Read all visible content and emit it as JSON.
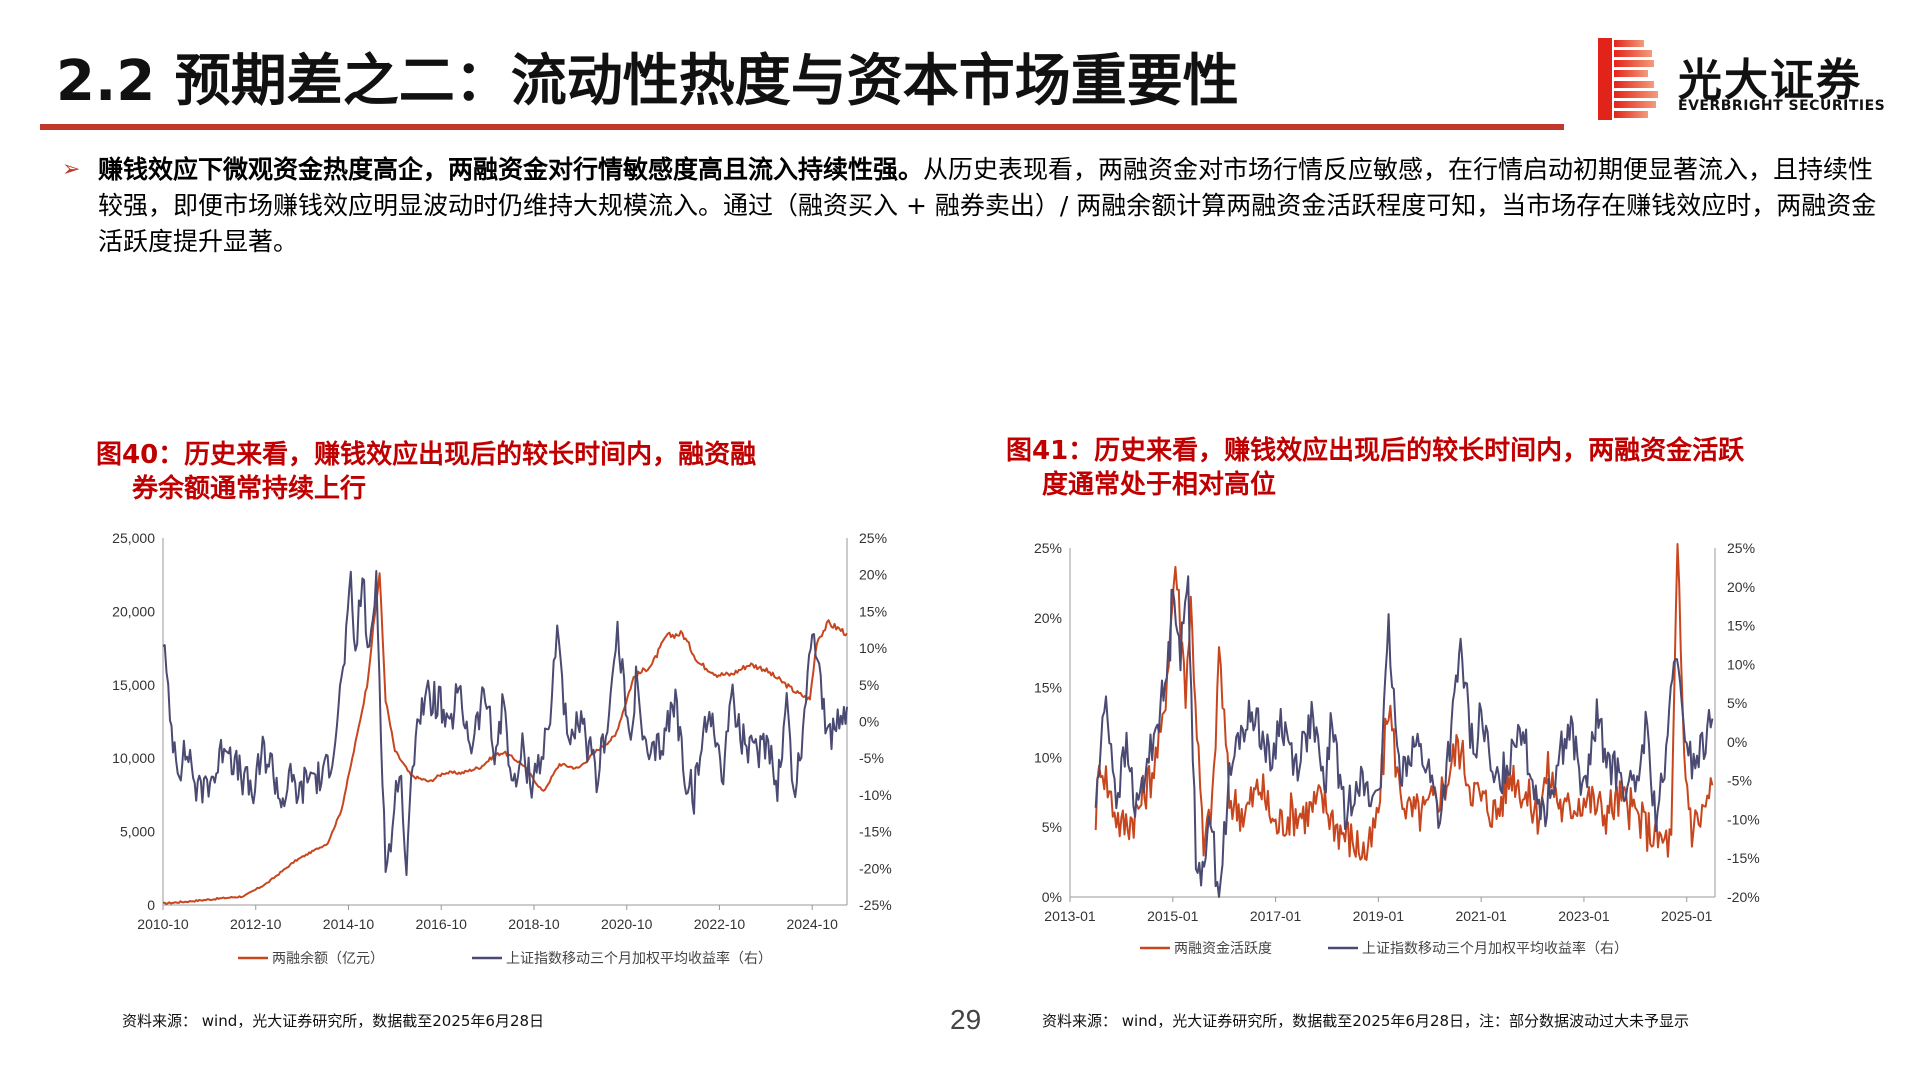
{
  "header": {
    "title": "2.2 预期差之二：流动性热度与资本市场重要性",
    "logo_cn": "光大证券",
    "logo_en": "EVERBRIGHT SECURITIES"
  },
  "bullet": {
    "bold": "赚钱效应下微观资金热度高企，两融资金对行情敏感度高且流入持续性强。",
    "normal": "从历史表现看，两融资金对市场行情反应敏感，在行情启动初期便显著流入，且持续性较强，即便市场赚钱效应明显波动时仍维持大规模流入。通过（融资买入 + 融券卖出）/ 两融余额计算两融资金活跃程度可知，当市场存在赚钱效应时，两融资金活跃度提升显著。"
  },
  "figures": [
    {
      "title_line1": "图40：历史来看，赚钱效应出现后的较长时间内，融资融",
      "title_line2": "券余额通常持续上行",
      "source": "资料来源： wind，光大证券研究所，数据截至2025年6月28日"
    },
    {
      "title_line1": "图41：历史来看，赚钱效应出现后的较长时间内，两融资金活跃",
      "title_line2": "度通常处于相对高位",
      "source": "资料来源： wind，光大证券研究所，数据截至2025年6月28日，注：部分数据波动过大未予显示"
    }
  ],
  "page_number": "29",
  "colors": {
    "accent": "#c0392b",
    "series_red": "#c8461e",
    "series_navy": "#4a4a72",
    "title_red": "#c00000"
  },
  "chart_data": [
    {
      "type": "line",
      "x_ticks": [
        "2010-10",
        "2012-10",
        "2014-10",
        "2016-10",
        "2018-10",
        "2020-10",
        "2022-10",
        "2024-10"
      ],
      "x_range": [
        2010.75,
        2025.5
      ],
      "y_left_ticks": [
        "25,000",
        "20,000",
        "15,000",
        "10,000",
        "5,000",
        "0"
      ],
      "y_left_range": [
        0,
        25000
      ],
      "y_right_ticks": [
        "25%",
        "20%",
        "15%",
        "10%",
        "5%",
        "0%",
        "-5%",
        "-10%",
        "-15%",
        "-20%",
        "-25%"
      ],
      "y_right_range": [
        -25,
        25
      ],
      "grid": false,
      "legend_position": "bottom",
      "series": [
        {
          "name": "两融余额（亿元）",
          "axis": "left",
          "points": [
            [
              2010.75,
              100
            ],
            [
              2011.5,
              300
            ],
            [
              2012.5,
              600
            ],
            [
              2013.0,
              1500
            ],
            [
              2013.6,
              3000
            ],
            [
              2014.0,
              3700
            ],
            [
              2014.3,
              4200
            ],
            [
              2014.6,
              6500
            ],
            [
              2014.9,
              11000
            ],
            [
              2015.15,
              15000
            ],
            [
              2015.42,
              22600
            ],
            [
              2015.55,
              14000
            ],
            [
              2015.75,
              10500
            ],
            [
              2016.1,
              8800
            ],
            [
              2016.5,
              8400
            ],
            [
              2016.8,
              9000
            ],
            [
              2017.2,
              9000
            ],
            [
              2017.6,
              9400
            ],
            [
              2017.9,
              10200
            ],
            [
              2018.1,
              10400
            ],
            [
              2018.5,
              9600
            ],
            [
              2018.95,
              7700
            ],
            [
              2019.3,
              9600
            ],
            [
              2019.7,
              9300
            ],
            [
              2020.1,
              10500
            ],
            [
              2020.5,
              11500
            ],
            [
              2020.9,
              15500
            ],
            [
              2021.3,
              16400
            ],
            [
              2021.6,
              18300
            ],
            [
              2021.95,
              18500
            ],
            [
              2022.3,
              16500
            ],
            [
              2022.7,
              15700
            ],
            [
              2023.0,
              15700
            ],
            [
              2023.4,
              16400
            ],
            [
              2023.7,
              16100
            ],
            [
              2024.1,
              15200
            ],
            [
              2024.4,
              14500
            ],
            [
              2024.7,
              14000
            ],
            [
              2024.85,
              18000
            ],
            [
              2025.1,
              19200
            ],
            [
              2025.5,
              18500
            ]
          ]
        },
        {
          "name": "上证指数移动三个月加权平均收益率（右）",
          "axis": "right",
          "points": [
            [
              2010.75,
              12
            ],
            [
              2010.9,
              0
            ],
            [
              2011.1,
              -6
            ],
            [
              2011.3,
              -4
            ],
            [
              2011.5,
              -10
            ],
            [
              2011.7,
              -8
            ],
            [
              2011.9,
              -7
            ],
            [
              2012.1,
              -2
            ],
            [
              2012.3,
              -6
            ],
            [
              2012.5,
              -8
            ],
            [
              2012.7,
              -10
            ],
            [
              2012.9,
              -4
            ],
            [
              2013.1,
              -6
            ],
            [
              2013.3,
              -11
            ],
            [
              2013.5,
              -8
            ],
            [
              2013.7,
              -10
            ],
            [
              2013.9,
              -7
            ],
            [
              2014.2,
              -8
            ],
            [
              2014.4,
              -4
            ],
            [
              2014.6,
              5
            ],
            [
              2014.8,
              18
            ],
            [
              2014.9,
              9
            ],
            [
              2015.05,
              20
            ],
            [
              2015.2,
              8
            ],
            [
              2015.35,
              20
            ],
            [
              2015.55,
              -20
            ],
            [
              2015.7,
              -15
            ],
            [
              2015.85,
              -5
            ],
            [
              2016.0,
              -20
            ],
            [
              2016.2,
              0
            ],
            [
              2016.4,
              3
            ],
            [
              2016.7,
              3
            ],
            [
              2016.9,
              -2
            ],
            [
              2017.1,
              4
            ],
            [
              2017.4,
              -3
            ],
            [
              2017.7,
              4
            ],
            [
              2017.9,
              -5
            ],
            [
              2018.1,
              3
            ],
            [
              2018.3,
              -10
            ],
            [
              2018.5,
              -4
            ],
            [
              2018.7,
              -8
            ],
            [
              2018.95,
              -4
            ],
            [
              2019.1,
              0
            ],
            [
              2019.25,
              14
            ],
            [
              2019.5,
              -5
            ],
            [
              2019.7,
              0
            ],
            [
              2019.9,
              -3
            ],
            [
              2020.1,
              -8
            ],
            [
              2020.4,
              3
            ],
            [
              2020.55,
              12
            ],
            [
              2020.8,
              -2
            ],
            [
              2020.95,
              5
            ],
            [
              2021.2,
              -6
            ],
            [
              2021.5,
              -3
            ],
            [
              2021.8,
              3
            ],
            [
              2022.0,
              -7
            ],
            [
              2022.2,
              -10
            ],
            [
              2022.4,
              -2
            ],
            [
              2022.6,
              2
            ],
            [
              2022.8,
              -8
            ],
            [
              2023.0,
              4
            ],
            [
              2023.2,
              -2
            ],
            [
              2023.5,
              -5
            ],
            [
              2023.8,
              -2
            ],
            [
              2024.0,
              -9
            ],
            [
              2024.2,
              3
            ],
            [
              2024.35,
              -10
            ],
            [
              2024.55,
              -2
            ],
            [
              2024.75,
              14
            ],
            [
              2024.9,
              7
            ],
            [
              2025.1,
              -3
            ],
            [
              2025.3,
              0
            ],
            [
              2025.5,
              2
            ]
          ]
        }
      ]
    },
    {
      "type": "line",
      "x_ticks": [
        "2013-01",
        "2015-01",
        "2017-01",
        "2019-01",
        "2021-01",
        "2023-01",
        "2025-01"
      ],
      "x_range": [
        2013.0,
        2025.55
      ],
      "y_left_ticks": [
        "25%",
        "20%",
        "15%",
        "10%",
        "5%",
        "0%"
      ],
      "y_left_range": [
        0,
        25
      ],
      "y_right_ticks": [
        "25%",
        "20%",
        "15%",
        "10%",
        "5%",
        "0%",
        "-5%",
        "-10%",
        "-15%",
        "-20%"
      ],
      "y_right_range": [
        -20,
        25
      ],
      "grid": false,
      "legend_position": "bottom",
      "series": [
        {
          "name": "两融资金活跃度",
          "axis": "left",
          "points": [
            [
              2013.5,
              6
            ],
            [
              2013.6,
              10
            ],
            [
              2013.8,
              7
            ],
            [
              2014.0,
              5
            ],
            [
              2014.3,
              6
            ],
            [
              2014.6,
              9
            ],
            [
              2014.8,
              12
            ],
            [
              2014.95,
              19
            ],
            [
              2015.05,
              24
            ],
            [
              2015.25,
              15
            ],
            [
              2015.35,
              21
            ],
            [
              2015.5,
              10
            ],
            [
              2015.6,
              3
            ],
            [
              2015.8,
              8
            ],
            [
              2015.9,
              18
            ],
            [
              2016.1,
              7
            ],
            [
              2016.4,
              6
            ],
            [
              2016.7,
              8
            ],
            [
              2017.0,
              5
            ],
            [
              2017.3,
              6
            ],
            [
              2017.6,
              6
            ],
            [
              2017.9,
              7
            ],
            [
              2018.2,
              5
            ],
            [
              2018.5,
              4
            ],
            [
              2018.8,
              3
            ],
            [
              2019.0,
              6
            ],
            [
              2019.2,
              14
            ],
            [
              2019.4,
              8
            ],
            [
              2019.6,
              6
            ],
            [
              2019.9,
              6
            ],
            [
              2020.1,
              7
            ],
            [
              2020.3,
              8
            ],
            [
              2020.55,
              11
            ],
            [
              2020.8,
              8
            ],
            [
              2021.0,
              7
            ],
            [
              2021.3,
              6
            ],
            [
              2021.6,
              9
            ],
            [
              2021.9,
              7
            ],
            [
              2022.1,
              6
            ],
            [
              2022.3,
              9
            ],
            [
              2022.6,
              6
            ],
            [
              2022.9,
              7
            ],
            [
              2023.1,
              7
            ],
            [
              2023.4,
              6
            ],
            [
              2023.7,
              7
            ],
            [
              2024.0,
              6
            ],
            [
              2024.2,
              5
            ],
            [
              2024.5,
              4
            ],
            [
              2024.7,
              4
            ],
            [
              2024.82,
              25
            ],
            [
              2024.95,
              10
            ],
            [
              2025.1,
              5
            ],
            [
              2025.3,
              6
            ],
            [
              2025.5,
              8
            ]
          ]
        },
        {
          "name": "上证指数移动三个月加权平均收益率（右）",
          "axis": "right",
          "points": [
            [
              2013.5,
              -8
            ],
            [
              2013.7,
              6
            ],
            [
              2013.9,
              -7
            ],
            [
              2014.1,
              -1
            ],
            [
              2014.3,
              -9
            ],
            [
              2014.5,
              -3
            ],
            [
              2014.7,
              3
            ],
            [
              2014.85,
              7
            ],
            [
              2014.95,
              13
            ],
            [
              2015.0,
              22
            ],
            [
              2015.15,
              11
            ],
            [
              2015.3,
              21
            ],
            [
              2015.45,
              -14
            ],
            [
              2015.55,
              -20
            ],
            [
              2015.7,
              -8
            ],
            [
              2015.9,
              -20
            ],
            [
              2016.1,
              -5
            ],
            [
              2016.3,
              1
            ],
            [
              2016.6,
              4
            ],
            [
              2016.9,
              -3
            ],
            [
              2017.1,
              3
            ],
            [
              2017.4,
              -3
            ],
            [
              2017.7,
              3
            ],
            [
              2017.95,
              -6
            ],
            [
              2018.1,
              3
            ],
            [
              2018.35,
              -10
            ],
            [
              2018.6,
              -4
            ],
            [
              2018.85,
              -8
            ],
            [
              2019.05,
              -4
            ],
            [
              2019.2,
              14
            ],
            [
              2019.4,
              -4
            ],
            [
              2019.7,
              0
            ],
            [
              2019.95,
              -3
            ],
            [
              2020.2,
              -10
            ],
            [
              2020.45,
              3
            ],
            [
              2020.6,
              12
            ],
            [
              2020.85,
              -2
            ],
            [
              2021.0,
              4
            ],
            [
              2021.25,
              -6
            ],
            [
              2021.5,
              -3
            ],
            [
              2021.75,
              3
            ],
            [
              2022.0,
              -5
            ],
            [
              2022.25,
              -9
            ],
            [
              2022.5,
              -2
            ],
            [
              2022.75,
              2
            ],
            [
              2023.0,
              -7
            ],
            [
              2023.25,
              3
            ],
            [
              2023.5,
              -3
            ],
            [
              2023.75,
              -5
            ],
            [
              2024.0,
              -7
            ],
            [
              2024.2,
              2
            ],
            [
              2024.4,
              -10
            ],
            [
              2024.6,
              -3
            ],
            [
              2024.75,
              12
            ],
            [
              2024.9,
              4
            ],
            [
              2025.1,
              -3
            ],
            [
              2025.3,
              -1
            ],
            [
              2025.5,
              3
            ]
          ]
        }
      ]
    }
  ]
}
